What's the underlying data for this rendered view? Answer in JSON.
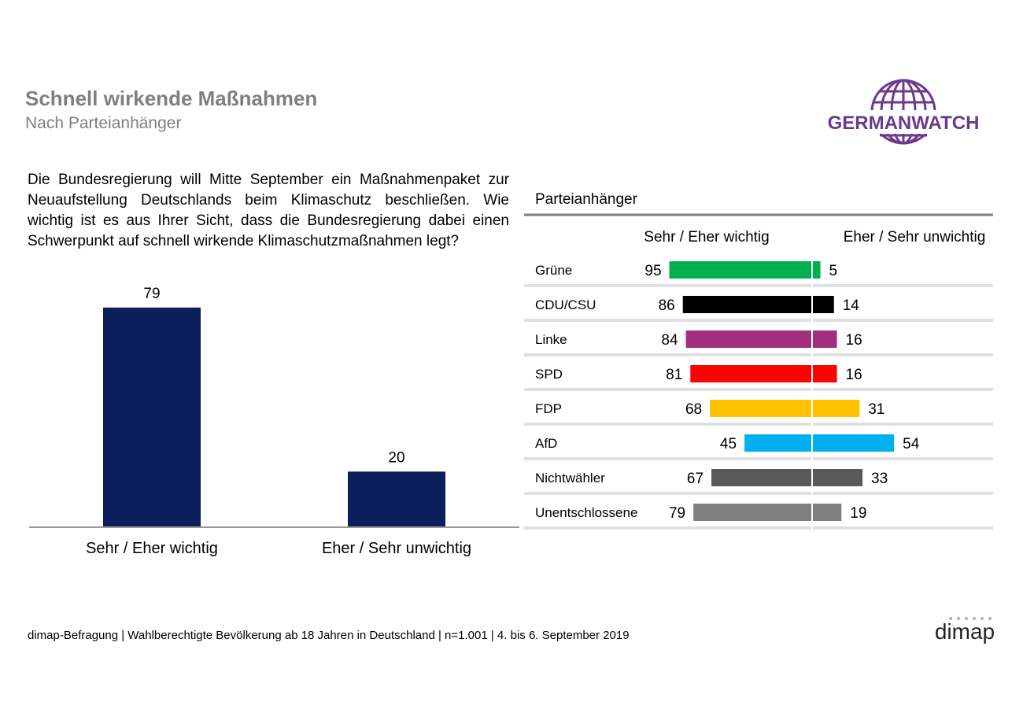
{
  "header": {
    "title": "Schnell wirkende Maßnahmen",
    "subtitle": "Nach Parteianhänger"
  },
  "logo": {
    "text": "GERMANWATCH",
    "color": "#6b3a8c"
  },
  "question": "Die Bundesregierung will Mitte September ein Maßnahmenpaket zur Neuaufstellung Deutschlands beim Klimaschutz beschließen. Wie wichtig ist es aus Ihrer Sicht, dass die Bundesregierung dabei einen Schwerpunkt auf schnell wirkende Klimaschutzmaßnahmen legt?",
  "footer": "dimap-Befragung | Wahlberechtigte Bevölkerung ab 18 Jahren in Deutschland | n=1.001 | 4. bis 6. September 2019",
  "footer_logo": "dimap",
  "chart_data": [
    {
      "type": "bar",
      "categories": [
        "Sehr / Eher wichtig",
        "Eher / Sehr unwichtig"
      ],
      "values": [
        79,
        20
      ],
      "color": "#0a1f5c",
      "ylim": [
        0,
        100
      ]
    },
    {
      "type": "bar",
      "orientation": "diverging-horizontal",
      "header": "Parteianhänger",
      "left_label": "Sehr / Eher wichtig",
      "right_label": "Eher / Sehr unwichtig",
      "categories": [
        "Grüne",
        "CDU/CSU",
        "Linke",
        "SPD",
        "FDP",
        "AfD",
        "Nichtwähler",
        "Unentschlossene"
      ],
      "series": [
        {
          "values": [
            95,
            86,
            84,
            81,
            68,
            45,
            67,
            79
          ]
        },
        {
          "values": [
            5,
            14,
            16,
            16,
            31,
            54,
            33,
            19
          ]
        }
      ],
      "colors": [
        "#00b050",
        "#000000",
        "#a0307e",
        "#ff0000",
        "#ffc000",
        "#00b0f0",
        "#595959",
        "#808080"
      ]
    }
  ]
}
